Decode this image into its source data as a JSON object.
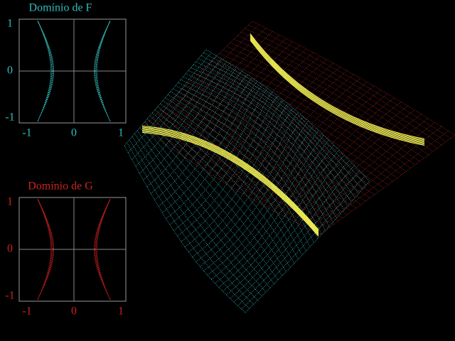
{
  "panels": [
    {
      "title": "Domínio de F",
      "xticks": [
        -1,
        0,
        1
      ],
      "yticks": [
        1,
        0,
        -1
      ],
      "color": "#33bbbb"
    },
    {
      "title": "Domínio de G",
      "xticks": [
        -1,
        0,
        1
      ],
      "yticks": [
        1,
        0,
        -1
      ],
      "color": "#cc2222"
    }
  ]
}
